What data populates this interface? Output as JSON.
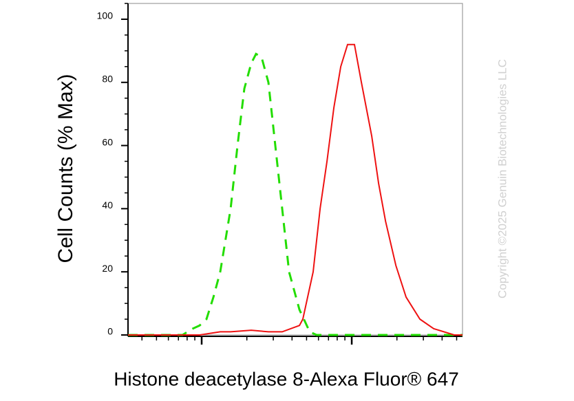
{
  "chart_data": {
    "type": "histogram-overlay",
    "xlabel": "Histone deacetylase 8-Alexa Fluor® 647",
    "ylabel": "Cell Counts (% Max)",
    "watermark": "Copyright ©2025 Genuin Biotechnologies LLC",
    "xscale": "log",
    "xlim": [
      323,
      54700
    ],
    "xticks": [
      1000,
      10000
    ],
    "xminor_ticks": [
      400,
      500,
      600,
      700,
      800,
      900,
      2000,
      3000,
      4000,
      5000,
      6000,
      7000,
      8000,
      9000,
      20000,
      30000,
      40000,
      50000
    ],
    "ylim": [
      0,
      105
    ],
    "yticks": [
      0,
      20,
      40,
      60,
      80,
      100
    ],
    "yminor_ticks": [
      5,
      10,
      15,
      25,
      30,
      35,
      45,
      50,
      55,
      65,
      70,
      75,
      85,
      90,
      95,
      105
    ],
    "series": [
      {
        "color": "#22dd00",
        "dashed": true,
        "x": [
          323,
          635,
          745,
          872,
          969,
          1077,
          1197,
          1330,
          1560,
          1733,
          1925,
          2139,
          2302,
          2506,
          2785,
          3095,
          3440,
          3823,
          4482,
          5248,
          5834,
          54700
        ],
        "values": [
          0,
          0,
          0,
          2,
          3,
          5,
          12,
          20,
          40,
          60,
          78,
          86,
          89,
          88,
          80,
          60,
          40,
          20,
          8,
          1,
          0,
          0
        ]
      },
      {
        "color": "#ee1111",
        "dashed": false,
        "x": [
          323,
          969,
          1330,
          1560,
          2139,
          2785,
          3440,
          4482,
          4721,
          5534,
          6151,
          6839,
          7601,
          8449,
          9382,
          10420,
          11590,
          13580,
          15100,
          16790,
          19680,
          23010,
          28440,
          35160,
          48190,
          54700
        ],
        "values": [
          0,
          0,
          1,
          1,
          1.5,
          1,
          1,
          3,
          5,
          20,
          40,
          55,
          72,
          85,
          92,
          92,
          80,
          63,
          48,
          36,
          22,
          12,
          5,
          2,
          0,
          0
        ]
      }
    ]
  }
}
